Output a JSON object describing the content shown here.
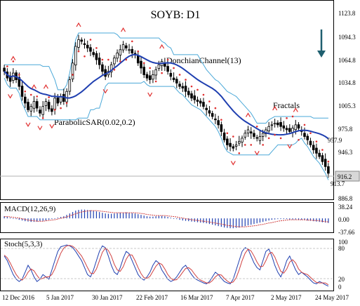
{
  "chart_data": {
    "type": "candlestick",
    "title": "SOYB: D1",
    "instrument": "SOYB",
    "timeframe": "D1",
    "colors": {
      "bull_body": "#ffffff",
      "bear_body": "#000000",
      "moving_average": "#1f3fb0",
      "donchian": "#4aa8d8",
      "parabolic_sar": "#e03030",
      "fractal": "#e03030",
      "macd_bars": "#1f3fb0",
      "macd_signal": "#d04040",
      "stoch_main": "#1f3fb0",
      "stoch_signal": "#d04040",
      "arrow": "#1f5f6f",
      "current_price_box": "#d8d8d8"
    },
    "x_labels": [
      "12 Dec 2016",
      "5 Jan 2017",
      "30 Jan 2017",
      "22 Feb 2017",
      "16 Mar 2017",
      "7 Apr 2017",
      "2 May 2017",
      "24 May 2017"
    ],
    "price_axis": {
      "ticks": [
        "1123.8",
        "1094.3",
        "1064.8",
        "1034.8",
        "1005.3",
        "975.8",
        "946.3",
        "916.2",
        "886.8"
      ],
      "ylim": [
        886.8,
        1123.8
      ],
      "current_price": "916.2",
      "extra_labels": [
        "957.9",
        "913.7"
      ]
    },
    "indicators": {
      "donchian": "DonchianChannel(13)",
      "psar": "ParabolicSAR(0.02,0.2)",
      "fractals": "Fractals",
      "macd": "MACD(12,26,9)",
      "stoch": "Stoch(5,3,3)"
    },
    "macd_axis": {
      "ticks": [
        "38.24",
        "0.00",
        "-37.66"
      ],
      "ylim": [
        -37.66,
        38.24
      ]
    },
    "stoch_axis": {
      "ticks": [
        "100",
        "80",
        "20",
        "0"
      ],
      "ylim": [
        0,
        100
      ]
    },
    "close": [
      1040,
      1032,
      1028,
      1038,
      1030,
      1022,
      1010,
      1002,
      994,
      998,
      1004,
      996,
      990,
      998,
      1004,
      995,
      992,
      1008,
      1002,
      1010,
      1004,
      1016,
      1030,
      1050,
      1070,
      1078,
      1076,
      1072,
      1068,
      1064,
      1060,
      1054,
      1048,
      1040,
      1034,
      1040,
      1048,
      1056,
      1062,
      1066,
      1072,
      1068,
      1066,
      1062,
      1060,
      1050,
      1044,
      1036,
      1032,
      1030,
      1036,
      1042,
      1048,
      1052,
      1046,
      1040,
      1034,
      1030,
      1026,
      1022,
      1020,
      1016,
      1012,
      1008,
      1006,
      1004,
      1002,
      998,
      994,
      990,
      986,
      982,
      976,
      968,
      958,
      952,
      950,
      948,
      952,
      956,
      960,
      966,
      970,
      966,
      962,
      960,
      962,
      966,
      970,
      974,
      976,
      978,
      976,
      974,
      972,
      970,
      968,
      972,
      976,
      972,
      968,
      962,
      958,
      952,
      946,
      942,
      938,
      932,
      926,
      918
    ],
    "macd": [
      6,
      4,
      2,
      0,
      -2,
      -4,
      -6,
      -8,
      -9,
      -10,
      -10,
      -9,
      -8,
      -7,
      -6,
      -4,
      -2,
      0,
      2,
      4,
      6,
      10,
      14,
      18,
      22,
      24,
      25,
      25,
      24,
      23,
      22,
      20,
      18,
      16,
      14,
      13,
      13,
      14,
      15,
      16,
      17,
      17,
      16,
      15,
      14,
      12,
      10,
      8,
      6,
      5,
      5,
      6,
      7,
      7,
      6,
      4,
      2,
      0,
      -2,
      -4,
      -6,
      -7,
      -8,
      -9,
      -10,
      -11,
      -12,
      -13,
      -14,
      -16,
      -18,
      -20,
      -22,
      -24,
      -26,
      -27,
      -28,
      -28,
      -27,
      -26,
      -24,
      -22,
      -20,
      -18,
      -16,
      -14,
      -12,
      -10,
      -8,
      -6,
      -4,
      -3,
      -2,
      -2,
      -2,
      -2,
      -3,
      -3,
      -3,
      -4,
      -4,
      -5,
      -6,
      -7,
      -8,
      -9,
      -10,
      -11,
      -12,
      -13
    ],
    "macd_signal": [
      5,
      5,
      4,
      3,
      2,
      1,
      -1,
      -3,
      -5,
      -6,
      -7,
      -8,
      -8,
      -8,
      -7,
      -6,
      -5,
      -4,
      -2,
      0,
      2,
      4,
      7,
      10,
      13,
      16,
      18,
      20,
      21,
      22,
      22,
      22,
      21,
      20,
      19,
      18,
      17,
      16,
      16,
      16,
      16,
      16,
      16,
      16,
      16,
      15,
      14,
      13,
      11,
      10,
      9,
      8,
      8,
      8,
      8,
      7,
      6,
      5,
      4,
      2,
      1,
      -1,
      -2,
      -4,
      -5,
      -6,
      -7,
      -8,
      -9,
      -10,
      -12,
      -13,
      -15,
      -16,
      -18,
      -20,
      -21,
      -22,
      -23,
      -24,
      -24,
      -24,
      -23,
      -22,
      -21,
      -20,
      -18,
      -17,
      -15,
      -13,
      -12,
      -10,
      -8,
      -7,
      -6,
      -5,
      -4,
      -4,
      -4,
      -4,
      -4,
      -4,
      -5,
      -5,
      -6,
      -6,
      -7,
      -8,
      -9,
      -10
    ],
    "stoch_main": [
      70,
      60,
      45,
      30,
      20,
      15,
      20,
      35,
      50,
      40,
      25,
      15,
      20,
      30,
      25,
      20,
      40,
      60,
      80,
      90,
      92,
      94,
      92,
      88,
      80,
      70,
      60,
      45,
      30,
      25,
      40,
      60,
      80,
      92,
      88,
      70,
      50,
      35,
      30,
      45,
      65,
      80,
      75,
      60,
      45,
      30,
      22,
      18,
      25,
      35,
      50,
      60,
      55,
      40,
      30,
      20,
      15,
      18,
      25,
      35,
      45,
      50,
      40,
      30,
      22,
      18,
      15,
      12,
      10,
      15,
      25,
      35,
      30,
      22,
      15,
      12,
      10,
      20,
      40,
      60,
      80,
      88,
      85,
      70,
      55,
      45,
      40,
      60,
      80,
      85,
      70,
      50,
      35,
      25,
      40,
      60,
      70,
      55,
      40,
      30,
      35,
      30,
      25,
      18,
      12,
      10,
      15,
      12,
      8,
      5
    ],
    "stoch_signal": [
      72,
      66,
      55,
      42,
      30,
      22,
      18,
      24,
      35,
      42,
      38,
      28,
      20,
      22,
      25,
      25,
      30,
      42,
      60,
      76,
      87,
      92,
      93,
      91,
      86,
      78,
      70,
      58,
      45,
      33,
      32,
      42,
      60,
      78,
      87,
      82,
      70,
      52,
      40,
      37,
      47,
      63,
      73,
      72,
      60,
      45,
      32,
      23,
      22,
      26,
      37,
      48,
      55,
      52,
      42,
      30,
      22,
      18,
      19,
      26,
      35,
      43,
      45,
      40,
      31,
      23,
      18,
      15,
      12,
      12,
      17,
      25,
      30,
      29,
      22,
      16,
      12,
      14,
      23,
      40,
      60,
      76,
      85,
      81,
      70,
      57,
      47,
      48,
      60,
      75,
      78,
      68,
      52,
      37,
      33,
      42,
      57,
      62,
      55,
      42,
      35,
      32,
      30,
      24,
      18,
      13,
      12,
      12,
      12,
      8
    ]
  }
}
